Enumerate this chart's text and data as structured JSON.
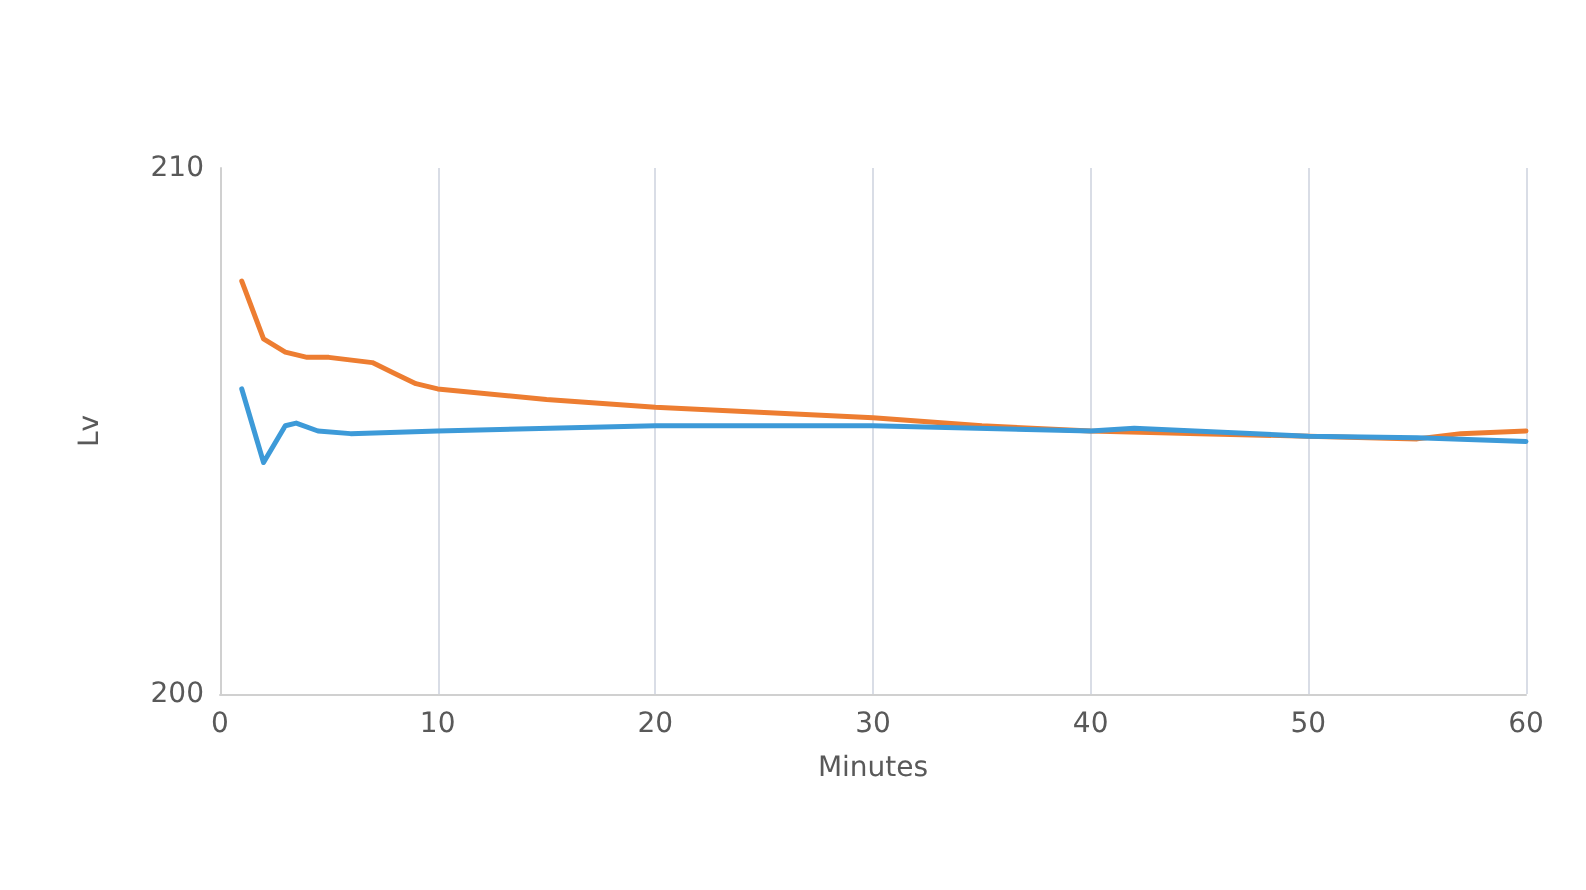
{
  "chart_data": {
    "type": "line",
    "xlabel": "Minutes",
    "ylabel": "Lv",
    "xlim": [
      0,
      60
    ],
    "xticks": [
      0,
      10,
      20,
      30,
      40,
      50,
      60
    ],
    "ylim": [
      200,
      210
    ],
    "yticks": [
      200,
      210
    ],
    "grid": "x",
    "marker": "none",
    "line_style": "solid",
    "series": [
      {
        "color": "#ed7d31",
        "x": [
          1,
          2,
          3,
          4,
          5,
          7,
          8,
          9,
          10,
          15,
          20,
          25,
          30,
          35,
          40,
          45,
          50,
          55,
          57,
          60
        ],
        "values": [
          207.85,
          206.75,
          206.5,
          206.4,
          206.4,
          206.3,
          206.1,
          205.9,
          205.8,
          205.6,
          205.45,
          205.35,
          205.25,
          205.1,
          205.0,
          204.95,
          204.9,
          204.85,
          204.95,
          205.0
        ]
      },
      {
        "color": "#3d9ad8",
        "x": [
          1,
          2,
          3,
          3.5,
          4.5,
          6,
          10,
          20,
          30,
          40,
          42,
          50,
          55,
          60
        ],
        "values": [
          205.8,
          204.4,
          205.1,
          205.15,
          205.0,
          204.95,
          205.0,
          205.1,
          205.1,
          205.0,
          205.05,
          204.9,
          204.87,
          204.8
        ]
      }
    ]
  }
}
